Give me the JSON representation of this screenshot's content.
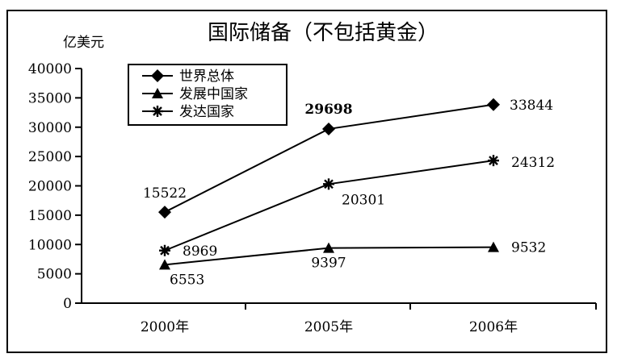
{
  "chart_data": {
    "type": "line",
    "title": "国际储备（不包括黄金）",
    "ylabel": "亿美元",
    "xlabel": "",
    "categories": [
      "2000年",
      "2005年",
      "2006年"
    ],
    "ylim": [
      0,
      40000
    ],
    "yticks": [
      0,
      5000,
      10000,
      15000,
      20000,
      25000,
      30000,
      35000,
      40000
    ],
    "grid": false,
    "legend": "top-left",
    "series": [
      {
        "name": "世界总体",
        "marker": "diamond",
        "values": [
          15522,
          29698,
          33844
        ],
        "labels": [
          "15522",
          "29698",
          "33844"
        ]
      },
      {
        "name": "发展中国家",
        "marker": "triangle",
        "values": [
          6553,
          9397,
          9532
        ],
        "labels": [
          "6553",
          "9397",
          "9532"
        ]
      },
      {
        "name": "发达国家",
        "marker": "asterisk",
        "values": [
          8969,
          20301,
          24312
        ],
        "labels": [
          "8969",
          "20301",
          "24312"
        ]
      }
    ]
  }
}
